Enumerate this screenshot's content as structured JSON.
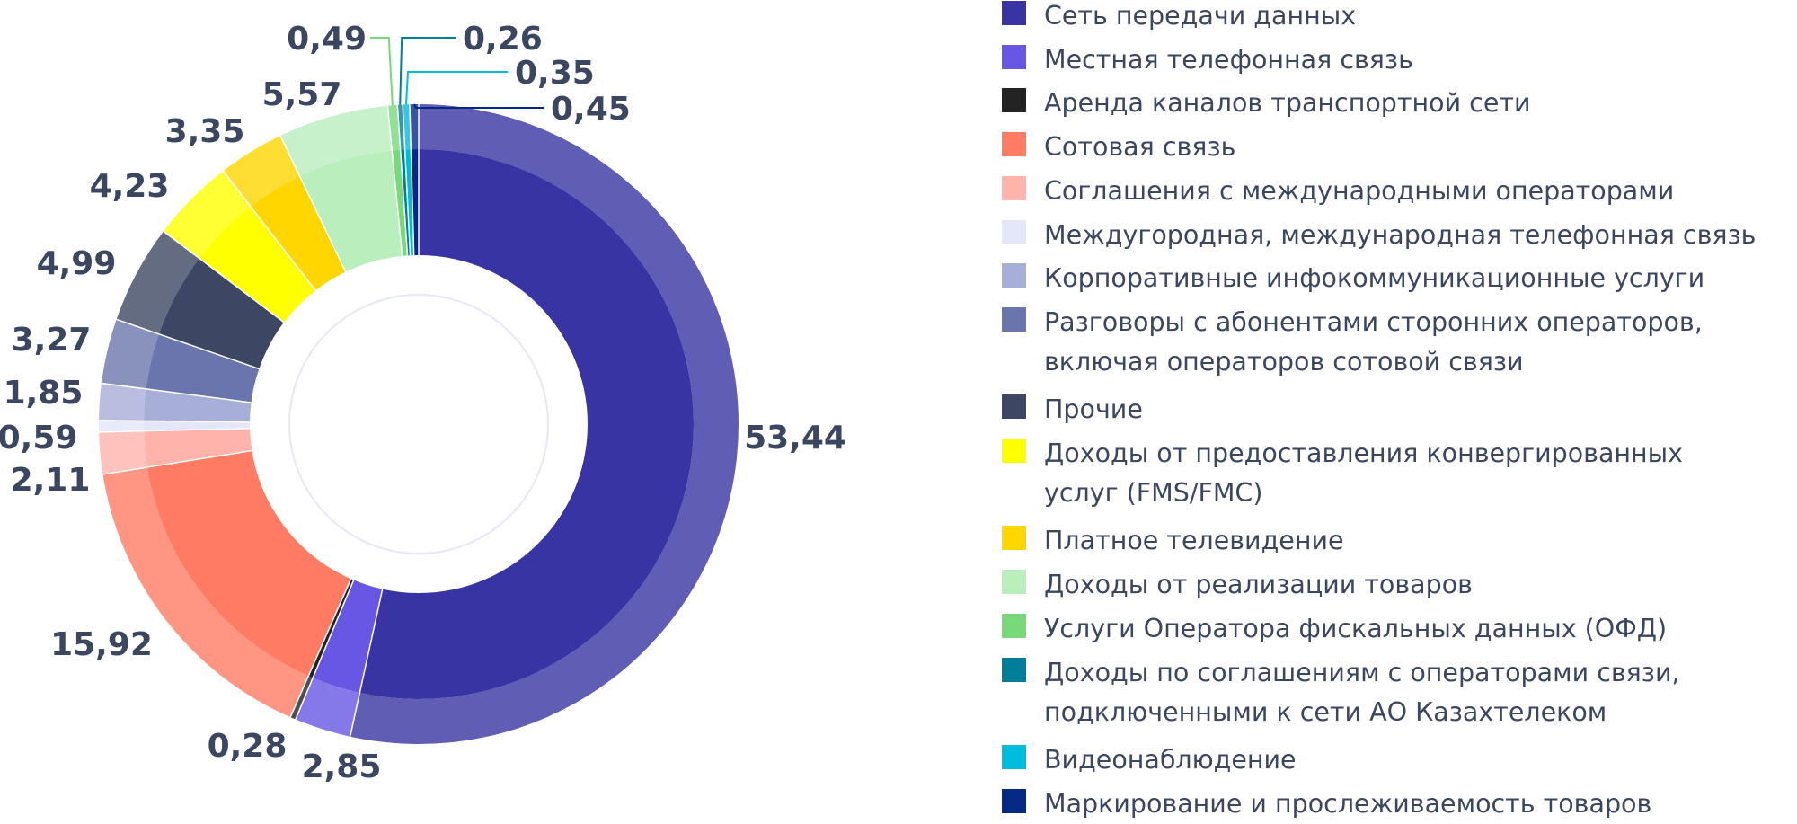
{
  "chart_data": {
    "type": "pie",
    "variant": "donut",
    "title": "",
    "series": [
      {
        "name": "Сеть передачи данных",
        "value": 53.44,
        "label": "53,44",
        "color": "#3834a3"
      },
      {
        "name": "Местная телефонная связь",
        "value": 2.85,
        "label": "2,85",
        "color": "#6757e3"
      },
      {
        "name": "Аренда каналов транспортной сети",
        "value": 0.28,
        "label": "0,28",
        "color": "#232323"
      },
      {
        "name": "Сотовая связь",
        "value": 15.92,
        "label": "15,92",
        "color": "#ff7b63"
      },
      {
        "name": "Соглашения с международными операторами",
        "value": 2.11,
        "label": "2,11",
        "color": "#ffb3ab"
      },
      {
        "name": "Междугородная, международная телефонная связь",
        "value": 0.59,
        "label": "0,59",
        "color": "#e4e6f9"
      },
      {
        "name": "Корпоративные инфокоммуникационные услуги",
        "value": 1.85,
        "label": "1,85",
        "color": "#a7aed8"
      },
      {
        "name": "Разговоры с абонентами сторонних операторов, включая операторов сотовой связи",
        "value": 3.27,
        "label": "3,27",
        "color": "#6b75ad"
      },
      {
        "name": "Прочие",
        "value": 4.99,
        "label": "4,99",
        "color": "#3d4763"
      },
      {
        "name": "Доходы от предоставления конвергированных услуг (FMS/FMC)",
        "value": 4.23,
        "label": "4,23",
        "color": "#ffff00"
      },
      {
        "name": "Платное телевидение",
        "value": 3.35,
        "label": "3,35",
        "color": "#ffd600"
      },
      {
        "name": "Доходы от реализации товаров",
        "value": 5.57,
        "label": "5,57",
        "color": "#b9eebd"
      },
      {
        "name": "Услуги Оператора фискальных данных (ОФД)",
        "value": 0.49,
        "label": "0,49",
        "color": "#77d97a"
      },
      {
        "name": "Доходы по соглашениям с операторами связи, подключенными к сети АО Казахтелеком",
        "value": 0.26,
        "label": "0,26",
        "color": "#017e99"
      },
      {
        "name": "Видеонаблюдение",
        "value": 0.35,
        "label": "0,35",
        "color": "#00bcdd"
      },
      {
        "name": "Маркирование и прослеживаемость товаров",
        "value": 0.45,
        "label": "0,45",
        "color": "#062986"
      }
    ]
  },
  "legend": {
    "items": [
      {
        "lines": [
          "Сеть передачи данных"
        ],
        "color": "#3834a3"
      },
      {
        "lines": [
          "Местная телефонная связь"
        ],
        "color": "#6757e3"
      },
      {
        "lines": [
          "Аренда каналов транспортной сети"
        ],
        "color": "#232323"
      },
      {
        "lines": [
          "Сотовая связь"
        ],
        "color": "#ff7b63"
      },
      {
        "lines": [
          "Соглашения с международными операторами"
        ],
        "color": "#ffb3ab"
      },
      {
        "lines": [
          "Междугородная, международная телефонная связь"
        ],
        "color": "#e4e6f9"
      },
      {
        "lines": [
          "Корпоративные инфокоммуникационные услуги"
        ],
        "color": "#a7aed8"
      },
      {
        "lines": [
          "Разговоры с абонентами сторонних операторов,",
          "включая операторов сотовой связи"
        ],
        "color": "#6b75ad"
      },
      {
        "lines": [
          "Прочие"
        ],
        "color": "#3d4763"
      },
      {
        "lines": [
          "Доходы от предоставления конвергированных",
          "услуг (FMS/FMC)"
        ],
        "color": "#ffff00"
      },
      {
        "lines": [
          "Платное телевидение"
        ],
        "color": "#ffd600"
      },
      {
        "lines": [
          "Доходы от реализации товаров"
        ],
        "color": "#b9eebd"
      },
      {
        "lines": [
          "Услуги Оператора фискальных данных (ОФД)"
        ],
        "color": "#77d97a"
      },
      {
        "lines": [
          "Доходы по соглашениям с операторами связи,",
          "подключенными к сети АО Казахтелеком"
        ],
        "color": "#017e99"
      },
      {
        "lines": [
          "Видеонаблюдение"
        ],
        "color": "#00bcdd"
      },
      {
        "lines": [
          "Маркирование и прослеживаемость товаров"
        ],
        "color": "#062986"
      }
    ]
  }
}
